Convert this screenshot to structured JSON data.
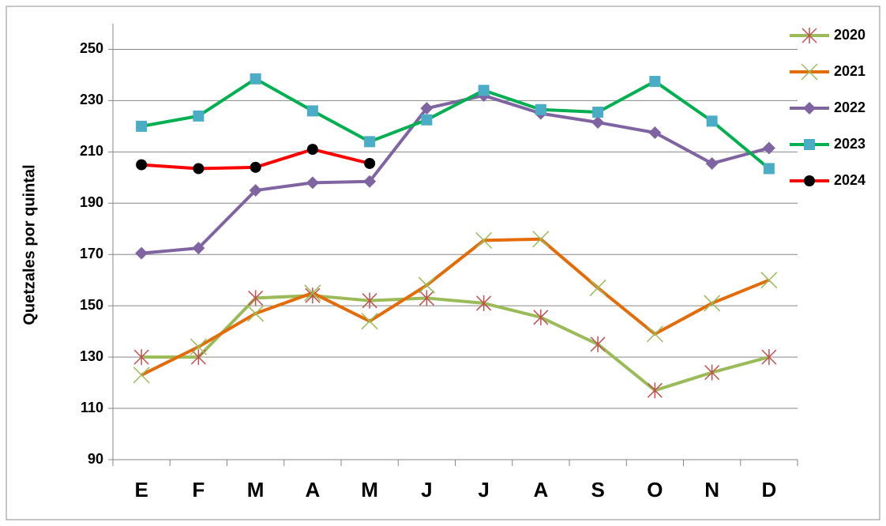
{
  "chart_data": {
    "type": "line",
    "y_label": "Quetzales por quintal",
    "categories": [
      "E",
      "F",
      "M",
      "A",
      "M",
      "J",
      "J",
      "A",
      "S",
      "O",
      "N",
      "D"
    ],
    "series": [
      {
        "name": "2020",
        "color": "#9bbb59",
        "marker": "star",
        "marker_color": "#c0504d",
        "values": [
          130,
          130,
          153,
          154,
          152,
          153,
          151,
          145.5,
          135,
          117,
          124,
          130
        ]
      },
      {
        "name": "2021",
        "color": "#e36c09",
        "marker": "x",
        "marker_color": "#9bbb59",
        "values": [
          123,
          134,
          147,
          155,
          144,
          158,
          175.5,
          176,
          157,
          139,
          151,
          160
        ]
      },
      {
        "name": "2022",
        "color": "#8064a2",
        "marker": "diamond",
        "marker_color": "#8064a2",
        "values": [
          170.5,
          172.5,
          195,
          198,
          198.5,
          227,
          232,
          225,
          221.5,
          217.5,
          205.5,
          211.5
        ]
      },
      {
        "name": "2023",
        "color": "#00b050",
        "marker": "square",
        "marker_color": "#4bacc6",
        "values": [
          220,
          224,
          238.5,
          226,
          214,
          222.5,
          234,
          226.5,
          225.5,
          237.5,
          222,
          203.5
        ]
      },
      {
        "name": "2024",
        "color": "#ff0000",
        "marker": "circle",
        "marker_color": "#000000",
        "values": [
          205,
          203.5,
          204,
          211,
          205.5,
          null,
          null,
          null,
          null,
          null,
          null,
          null
        ]
      }
    ],
    "ylim": [
      90,
      260
    ],
    "yticks": [
      90,
      110,
      130,
      150,
      170,
      190,
      210,
      230,
      250
    ],
    "grid": true,
    "legend": "right"
  }
}
